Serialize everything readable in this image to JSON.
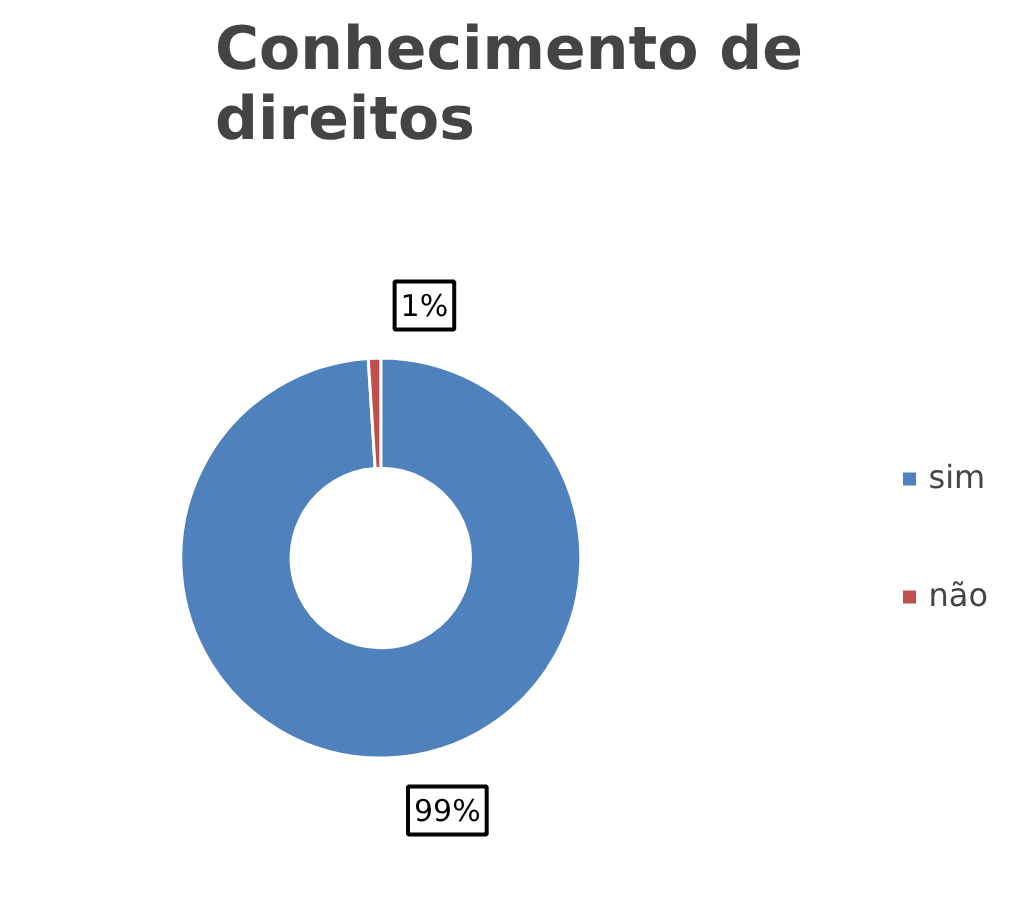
{
  "chart_data": {
    "type": "donut",
    "title": "Conhecimento de\ndireitos",
    "categories": [
      "sim",
      "não"
    ],
    "values": [
      99,
      1
    ],
    "colors": [
      "#4f81bd",
      "#c0504d"
    ],
    "value_labels": [
      "99%",
      "1%"
    ],
    "legend": "right"
  }
}
